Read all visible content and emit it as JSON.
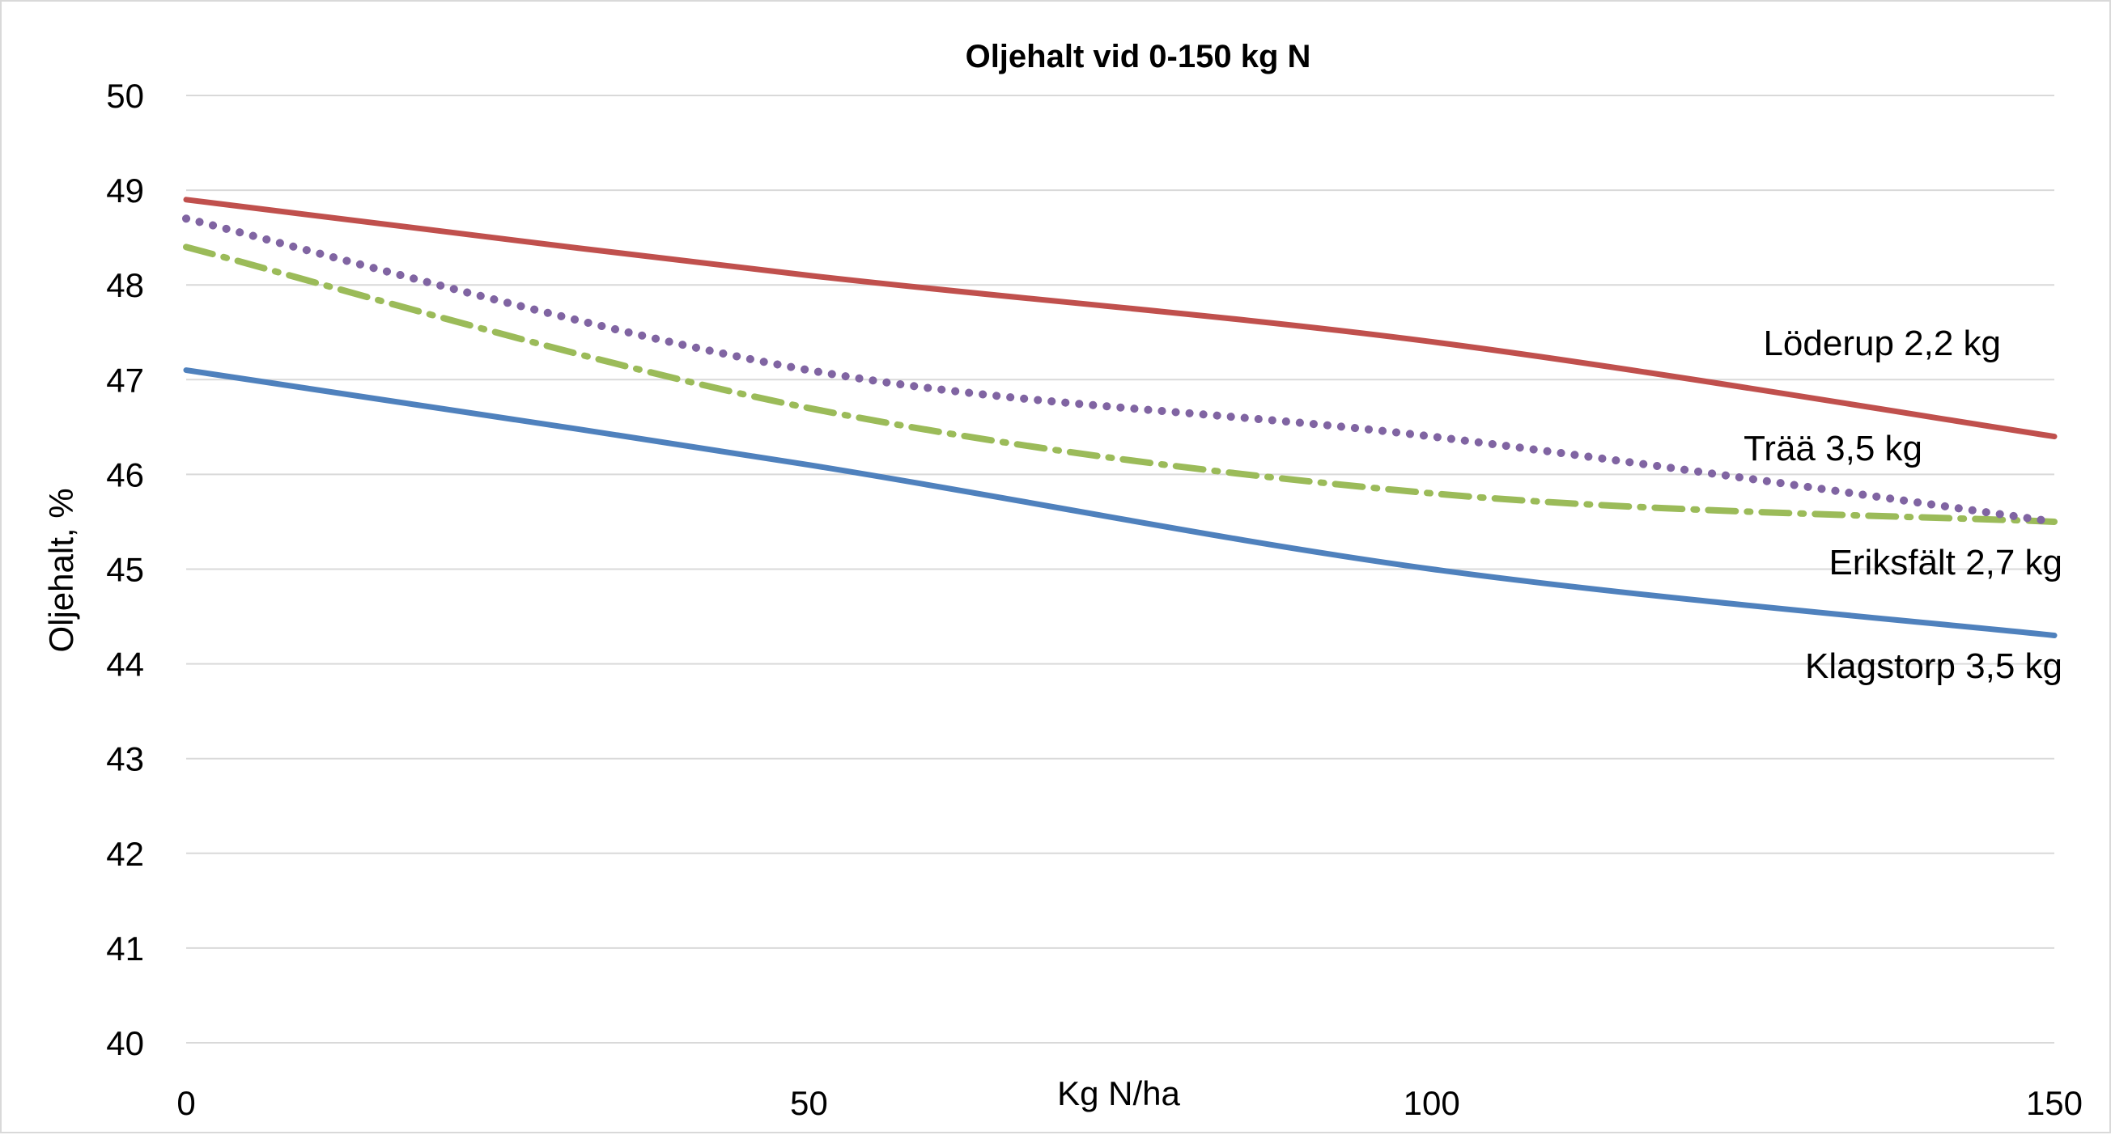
{
  "chart_data": {
    "type": "line",
    "title": "Oljehalt vid 0-150 kg N",
    "xlabel": "Kg  N/ha",
    "ylabel": "Oljehalt, %",
    "xlim": [
      0,
      150
    ],
    "ylim": [
      40,
      50
    ],
    "x_ticks": [
      0,
      50,
      100,
      150
    ],
    "y_ticks": [
      40,
      41,
      42,
      43,
      44,
      45,
      46,
      47,
      48,
      49,
      50
    ],
    "x": [
      0,
      50,
      100,
      150
    ],
    "grid": "horizontal",
    "legend": "inline labels at right",
    "series": [
      {
        "name": "Löderup 2,2 kg",
        "values": [
          48.9,
          48.1,
          47.4,
          46.4
        ],
        "color": "#c0504d",
        "style": "solid"
      },
      {
        "name": "Trää 3,5 kg",
        "values": [
          48.7,
          47.1,
          46.4,
          45.5
        ],
        "color": "#8064a2",
        "style": "dotted"
      },
      {
        "name": "Eriksfält 2,7 kg",
        "values": [
          48.4,
          46.7,
          45.8,
          45.5
        ],
        "color": "#9bbb59",
        "style": "dash-dot"
      },
      {
        "name": "Klagstorp 3,5 kg",
        "values": [
          47.1,
          46.1,
          45.0,
          44.3
        ],
        "color": "#4f81bd",
        "style": "solid"
      }
    ]
  }
}
